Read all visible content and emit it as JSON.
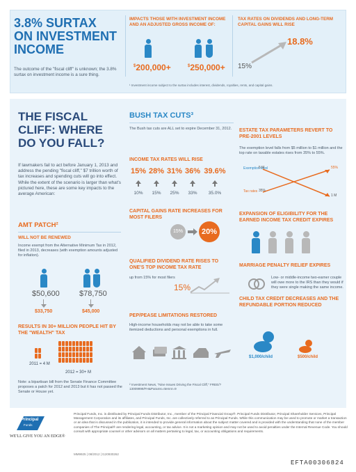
{
  "top": {
    "title": "3.8% SURTAX ON INVESTMENT INCOME",
    "desc": "The outcome of the \"fiscal cliff\" is unknown; the 3.8% surtax on investment income is a sure thing.",
    "desc_sup": "1",
    "impacts_head": "IMPACTS THOSE WITH INVESTMENT INCOME AND AN ADJUSTED GROSS INCOME OF:",
    "amount_single": "200,000+",
    "amount_joint": "250,000+",
    "currency": "$",
    "tax_head": "TAX RATES ON DIVIDENDS AND LONG-TERM CAPITAL GAINS WILL RISE",
    "rate_from": "15%",
    "rate_to": "18.8%",
    "footnote": "¹ Investment income subject to the surtax includes interest, dividends, royalties, rents, and capital gains."
  },
  "fiscal": {
    "title": "THE FISCAL CLIFF: WHERE DO YOU FALL?",
    "desc": "If lawmakers fail to act before January 1, 2013 and address the pending \"fiscal cliff,\" $7 trillion worth of tax increases and spending cuts will go into effect. While the extent of the scenario is larger than what's pictured here, these are some key impacts to the average American:"
  },
  "amt": {
    "head": "AMT PATCH²",
    "will_not": "WILL NOT BE RENEWED",
    "desc": "Income exempt from the Alternative Minimum Tax in 2012, filed in 2013, decreases (with exemption amounts adjusted for inflation).",
    "single_from": "$50,600",
    "joint_from": "$78,750",
    "single_to": "$33,750",
    "joint_to": "$45,000",
    "result_head": "RESULTS IN 30+ MILLION PEOPLE HIT BY THE \"WEALTH\" TAX",
    "y2011": "2011 = 4 M",
    "y2012": "2012 = 30+ M",
    "note": "Note: a bipartisan bill from the Senate Finance Committee proposes a patch for 2012 and 2013 but it has not passed the Senate or House yet."
  },
  "bush": {
    "head": "BUSH TAX CUTS³",
    "desc": "The Bush tax cuts are ALL set to expire December 31, 2012.",
    "itr_head": "INCOME TAX RATES WILL RISE",
    "rates_new": [
      "15%",
      "28%",
      "31%",
      "36%",
      "39.6%"
    ],
    "rates_old": [
      "10%",
      "15%",
      "25%",
      "33%",
      "35.0%"
    ],
    "cg_head": "CAPITAL GAINS RATE INCREASES FOR MOST FILERS",
    "cg_from": "15%",
    "cg_to": "20%",
    "qd_head": "QUALIFIED DIVIDEND RATE RISES TO ONE'S TOP INCOME TAX RATE",
    "qd_desc": "up from 15% for most filers",
    "qd_value": "15%",
    "pep_head": "PEP/PEASE LIMITATIONS RESTORED",
    "pep_desc": "High-income households may not be able to take some itemized deductions and personal exemptions in full.",
    "footnote": "² Investment News, \"Nine Issues Driving the Fiscal Cliff,\" FREE/?13009999/FH&Params=Itemnr=9"
  },
  "estate": {
    "head": "ESTATE TAX PARAMETERS REVERT TO PRE-2001 LEVELS",
    "desc": "The exemption level falls from $5 million to $1 million and the top rate on taxable estates rises from 35% to 55%.",
    "ex_label": "Exemption level",
    "tr_label": "Tax rates",
    "ex_from": "5 M",
    "tr_from": "35%",
    "tr_to": "55%",
    "ex_to": "1 M"
  },
  "eitc": {
    "head": "EXPANSION OF ELIGIBILITY FOR THE EARNED INCOME TAX CREDIT EXPIRES"
  },
  "marriage": {
    "head": "MARRIAGE PENALTY RELIEF EXPIRES",
    "desc": "Low- or middle-income two-earner couple will owe more to the IRS than they would if they were single making the same income."
  },
  "ctc": {
    "head": "CHILD TAX CREDIT DECREASES AND THE REFUNDABLE PORTION REDUCED",
    "from": "$1,000/child",
    "to": "$500/child"
  },
  "footer": {
    "logo_top": "Principal",
    "logo_bottom": "Funds",
    "tagline": "WE'LL GIVE YOU AN EDGE®",
    "disclaimer": "Principal Funds, Inc. is distributed by Principal Funds Distributor, Inc., member of the Principal Financial Group®. Principal Funds Distributor, Principal Shareholder Services, Principal Management Corporation and its affiliates, and Principal Funds, Inc. are collectively referred to as Principal Funds. While this communication may be used to promote or market a transaction or an idea that is discussed in the publication, it is intended to provide general information about the subject matter covered and is provided with the understanding that none of the member companies of The Principal® are rendering legal, accounting, or tax advice. It is not a marketing opinion and may not be used to avoid penalties under the Internal Revenue Code. You should consult with appropriate counsel or other advisors on all matters pertaining to legal, tax, or accounting obligations and requirements.",
    "doc_code": "MM9925 | 08/2012 | t120930262",
    "efta": "EFTA00306824"
  },
  "colors": {
    "orange": "#e86b1f",
    "blue": "#2a88c6",
    "navy": "#2a4a7a",
    "grey": "#b8b8b8",
    "panel": "#eaf3fa"
  }
}
